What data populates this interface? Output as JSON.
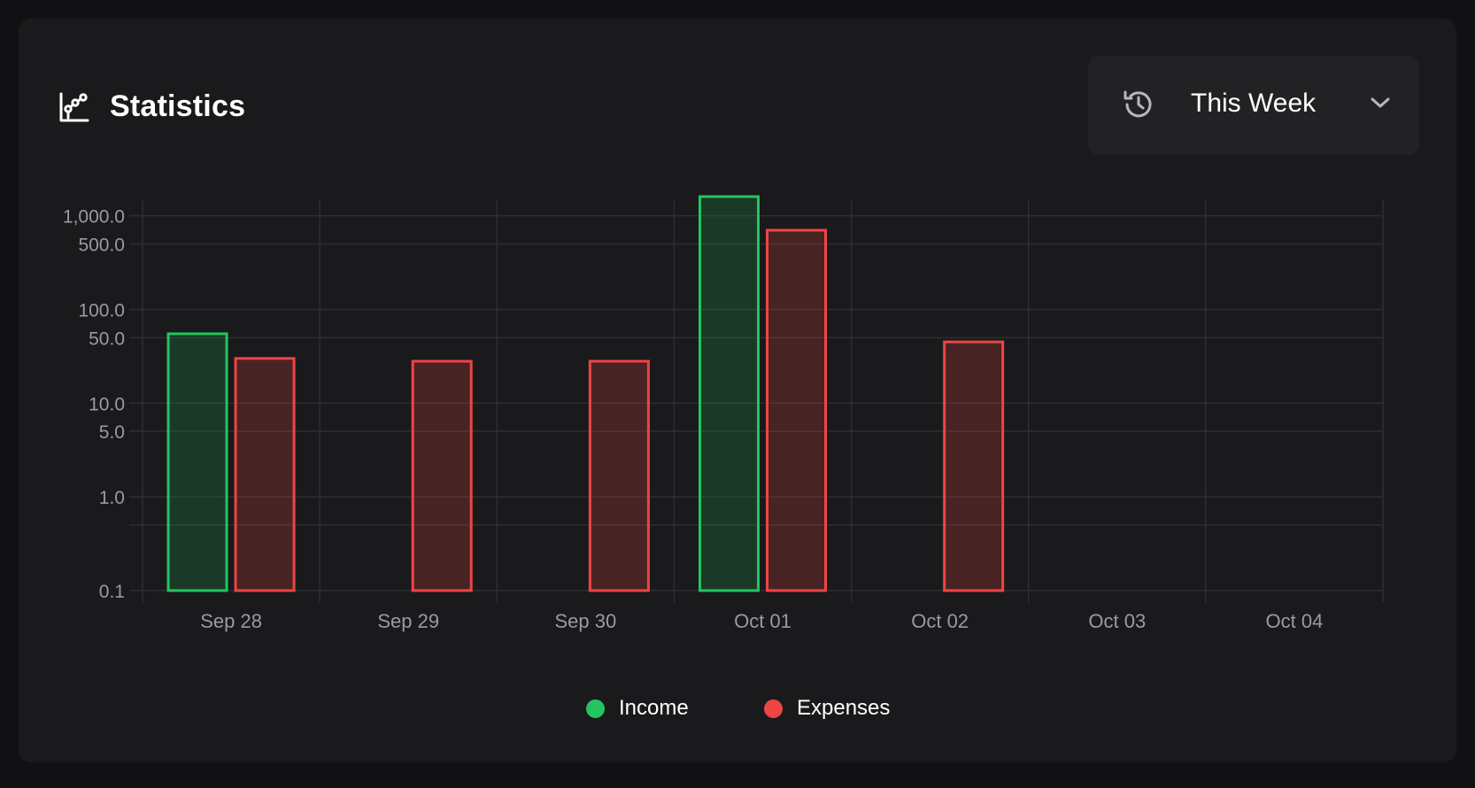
{
  "header": {
    "title": "Statistics",
    "title_icon": "chart-line-icon",
    "period": {
      "label": "This Week",
      "icon": "history-icon",
      "dropdown_icon": "chevron-down-icon"
    }
  },
  "colors": {
    "income": "#22c55e",
    "expenses": "#ef4444"
  },
  "chart_data": {
    "type": "bar",
    "title": "",
    "xlabel": "",
    "ylabel": "",
    "yscale": "log",
    "ylim": [
      0.1,
      1500
    ],
    "grid": true,
    "legend_position": "bottom",
    "categories": [
      "Sep 28",
      "Sep 29",
      "Sep 30",
      "Oct 01",
      "Oct 02",
      "Oct 03",
      "Oct 04"
    ],
    "yticks": [
      {
        "value": 1000,
        "label": "1,000.0"
      },
      {
        "value": 500,
        "label": "500.0"
      },
      {
        "value": 100,
        "label": "100.0"
      },
      {
        "value": 50,
        "label": "50.0"
      },
      {
        "value": 10,
        "label": "10.0"
      },
      {
        "value": 5,
        "label": "5.0"
      },
      {
        "value": 1,
        "label": "1.0"
      },
      {
        "value": 0.1,
        "label": "0.1"
      }
    ],
    "series": [
      {
        "name": "Income",
        "color": "#22c55e",
        "values": [
          55,
          null,
          null,
          1600,
          null,
          null,
          null
        ]
      },
      {
        "name": "Expenses",
        "color": "#ef4444",
        "values": [
          30,
          28,
          28,
          700,
          45,
          null,
          null
        ]
      }
    ]
  }
}
